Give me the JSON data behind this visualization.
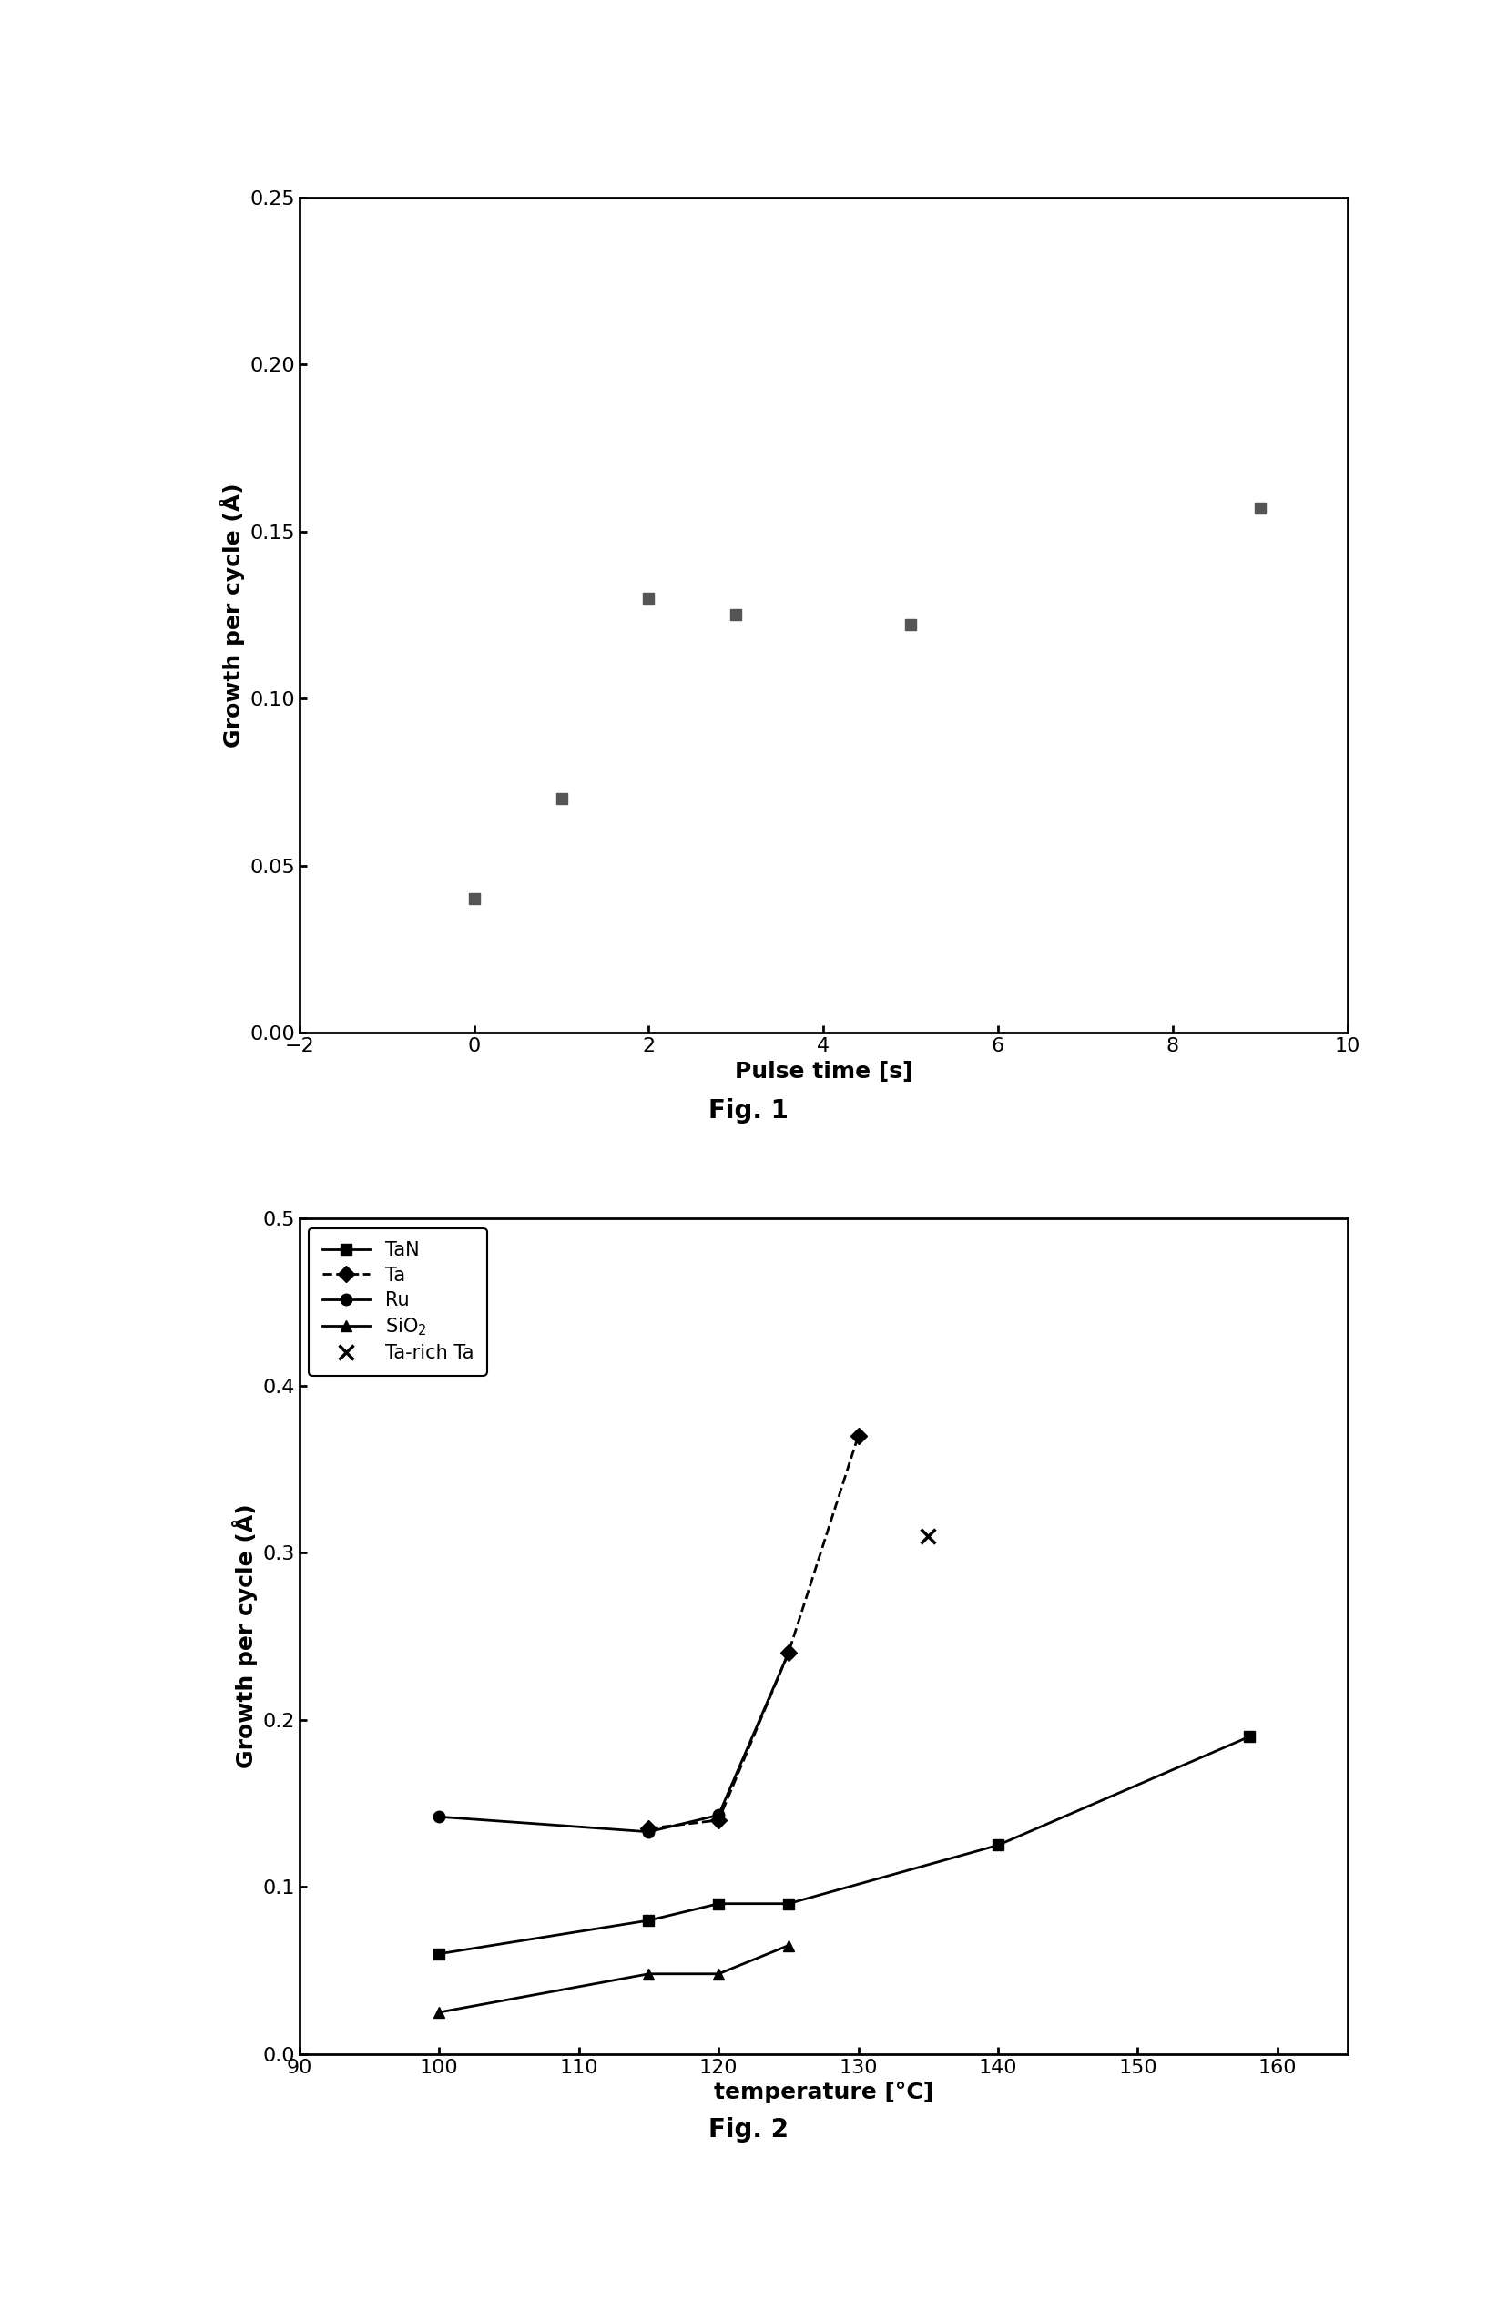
{
  "fig1": {
    "x": [
      0,
      1,
      2,
      3,
      5,
      9
    ],
    "y": [
      0.04,
      0.07,
      0.13,
      0.125,
      0.122,
      0.157
    ],
    "xlabel": "Pulse time [s]",
    "ylabel": "Growth per cycle (Å)",
    "xlim": [
      -2,
      10
    ],
    "ylim": [
      0.0,
      0.25
    ],
    "xticks": [
      -2,
      0,
      2,
      4,
      6,
      8,
      10
    ],
    "yticks": [
      0.0,
      0.05,
      0.1,
      0.15,
      0.2,
      0.25
    ],
    "marker": "s",
    "markersize": 9,
    "color": "#555555",
    "caption": "Fig. 1"
  },
  "fig2": {
    "TaN": {
      "x": [
        100,
        115,
        120,
        125,
        140,
        158
      ],
      "y": [
        0.06,
        0.08,
        0.09,
        0.09,
        0.125,
        0.19
      ]
    },
    "Ta": {
      "x": [
        115,
        120,
        125,
        130
      ],
      "y": [
        0.135,
        0.14,
        0.24,
        0.37
      ]
    },
    "Ru": {
      "x": [
        100,
        115,
        120,
        125
      ],
      "y": [
        0.142,
        0.133,
        0.143,
        0.24
      ]
    },
    "SiO2": {
      "x": [
        100,
        115,
        120,
        125
      ],
      "y": [
        0.025,
        0.048,
        0.048,
        0.065
      ]
    },
    "TarichTa": {
      "x": [
        135
      ],
      "y": [
        0.31
      ]
    },
    "xlabel": "temperature [°C]",
    "ylabel": "Growth per cycle (Å)",
    "xlim": [
      90,
      165
    ],
    "ylim": [
      0.0,
      0.5
    ],
    "xticks": [
      90,
      100,
      110,
      120,
      130,
      140,
      150,
      160
    ],
    "yticks": [
      0.0,
      0.1,
      0.2,
      0.3,
      0.4,
      0.5
    ],
    "caption": "Fig. 2"
  },
  "background_color": "#ffffff"
}
